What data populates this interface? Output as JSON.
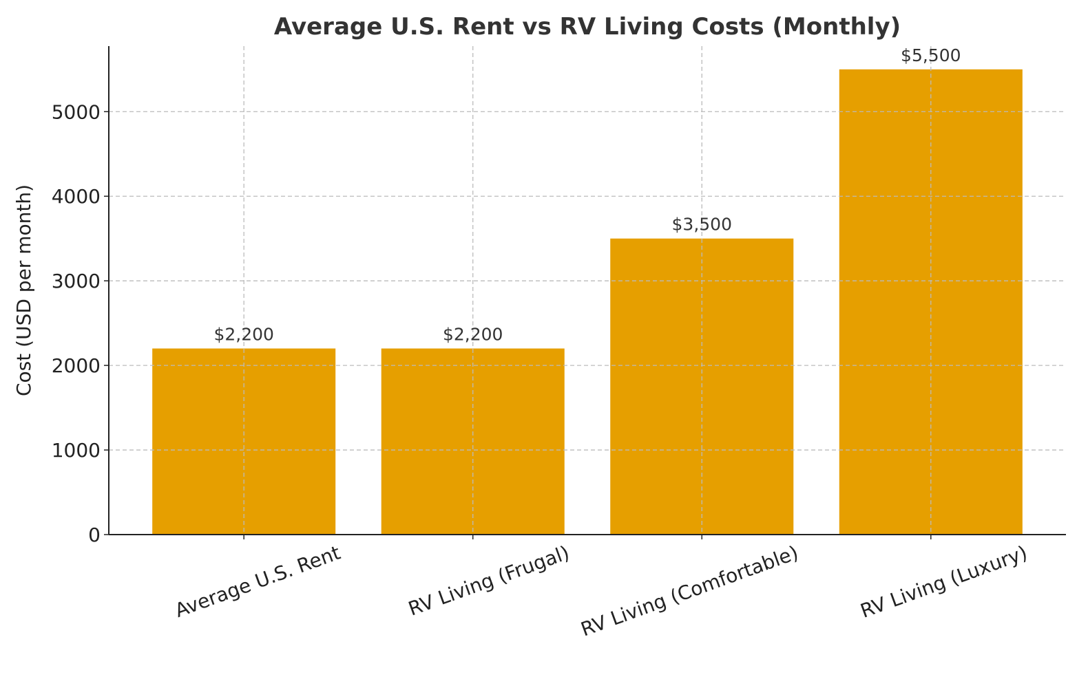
{
  "chart_data": {
    "type": "bar",
    "title": "Average U.S. Rent vs RV Living Costs (Monthly)",
    "xlabel": "",
    "ylabel": "Cost (USD per month)",
    "categories": [
      "Average U.S. Rent",
      "RV Living (Frugal)",
      "RV Living (Comfortable)",
      "RV Living (Luxury)"
    ],
    "values": [
      2200,
      2200,
      3500,
      5500
    ],
    "data_labels": [
      "$2,200",
      "$2,200",
      "$3,500",
      "$5,500"
    ],
    "ylim": [
      0,
      5775
    ],
    "yticks": [
      0,
      1000,
      2000,
      3000,
      4000,
      5000
    ],
    "ytick_labels": [
      "0",
      "1000",
      "2000",
      "3000",
      "4000",
      "5000"
    ],
    "grid": true,
    "bar_color": "#E69F00"
  }
}
